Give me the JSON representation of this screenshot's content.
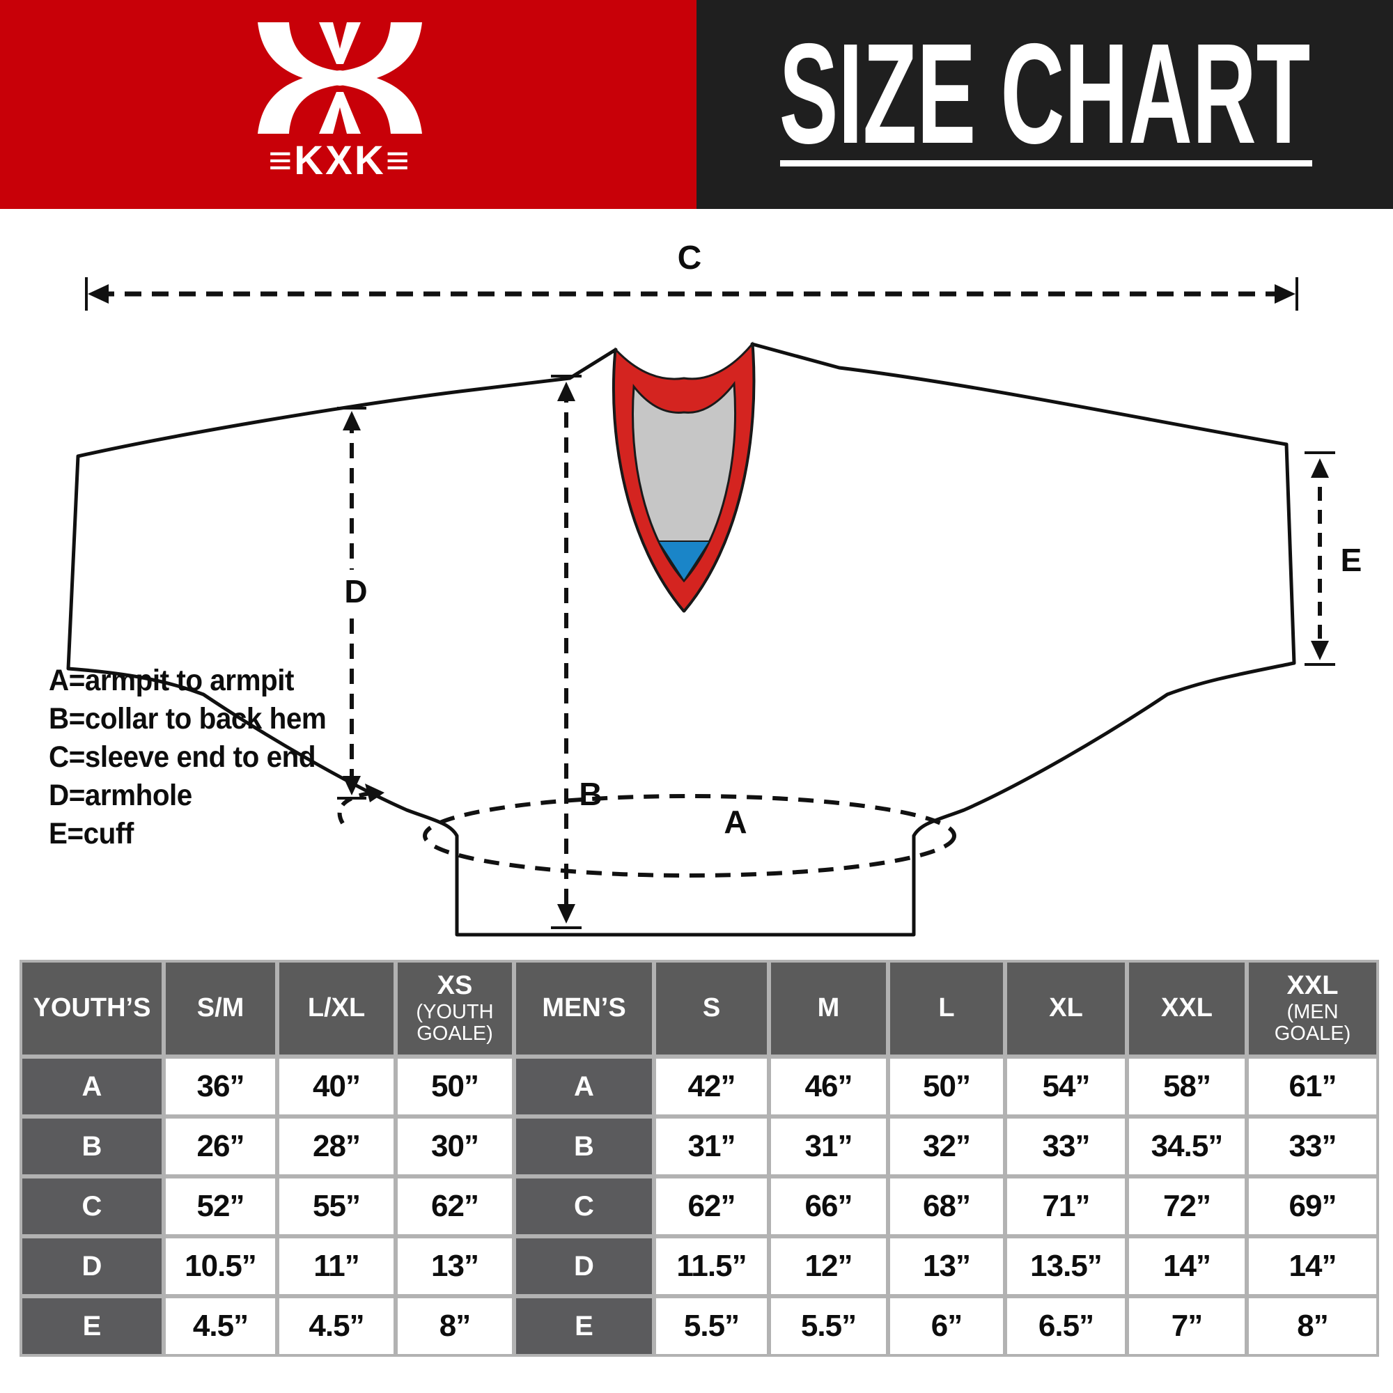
{
  "brand": {
    "logo_text": "≡KXK≡"
  },
  "banner": {
    "title": "SIZE CHART",
    "red": "#c80008",
    "dark": "#1f1f1f"
  },
  "diagram": {
    "arrow_labels": {
      "a": "A",
      "b": "B",
      "c": "C",
      "d": "D",
      "e": "E"
    },
    "legend": [
      "A=armpit to armpit",
      "B=collar to back hem",
      "C=sleeve end to end",
      "D=armhole",
      "E=cuff"
    ],
    "colors": {
      "collar_red": "#d42420",
      "collar_inner_gray": "#c6c6c6",
      "collar_inner_blue": "#1a85c8"
    }
  },
  "table": {
    "columns": [
      {
        "label": "YOUTH’S",
        "sub": ""
      },
      {
        "label": "S/M",
        "sub": ""
      },
      {
        "label": "L/XL",
        "sub": ""
      },
      {
        "label": "XS",
        "sub": "(YOUTH GOALE)"
      },
      {
        "label": "MEN’S",
        "sub": ""
      },
      {
        "label": "S",
        "sub": ""
      },
      {
        "label": "M",
        "sub": ""
      },
      {
        "label": "L",
        "sub": ""
      },
      {
        "label": "XL",
        "sub": ""
      },
      {
        "label": "XXL",
        "sub": ""
      },
      {
        "label": "XXL",
        "sub": "(MEN GOALE)"
      }
    ],
    "label_col_indexes": [
      0,
      4
    ],
    "rows": [
      {
        "cells": [
          "A",
          "36”",
          "40”",
          "50”",
          "A",
          "42”",
          "46”",
          "50”",
          "54”",
          "58”",
          "61”"
        ]
      },
      {
        "cells": [
          "B",
          "26”",
          "28”",
          "30”",
          "B",
          "31”",
          "31”",
          "32”",
          "33”",
          "34.5”",
          "33”"
        ]
      },
      {
        "cells": [
          "C",
          "52”",
          "55”",
          "62”",
          "C",
          "62”",
          "66”",
          "68”",
          "71”",
          "72”",
          "69”"
        ]
      },
      {
        "cells": [
          "D",
          "10.5”",
          "11”",
          "13”",
          "D",
          "11.5”",
          "12”",
          "13”",
          "13.5”",
          "14”",
          "14”"
        ]
      },
      {
        "cells": [
          "E",
          "4.5”",
          "4.5”",
          "8”",
          "E",
          "5.5”",
          "5.5”",
          "6”",
          "6.5”",
          "7”",
          "8”"
        ]
      }
    ]
  },
  "chart_data": {
    "type": "table",
    "title": "SIZE CHART",
    "units": "inches",
    "measurement_legend": {
      "A": "armpit to armpit",
      "B": "collar to back hem",
      "C": "sleeve end to end",
      "D": "armhole",
      "E": "cuff"
    },
    "youth_sizes": {
      "columns": [
        "S/M",
        "L/XL",
        "XS (YOUTH GOALE)"
      ],
      "A": [
        "36",
        "40",
        "50"
      ],
      "B": [
        "26",
        "28",
        "30"
      ],
      "C": [
        "52",
        "55",
        "62"
      ],
      "D": [
        "10.5",
        "11",
        "13"
      ],
      "E": [
        "4.5",
        "4.5",
        "8"
      ]
    },
    "mens_sizes": {
      "columns": [
        "S",
        "M",
        "L",
        "XL",
        "XXL",
        "XXL (MEN GOALE)"
      ],
      "A": [
        "42",
        "46",
        "50",
        "54",
        "58",
        "61"
      ],
      "B": [
        "31",
        "31",
        "32",
        "33",
        "34.5",
        "33"
      ],
      "C": [
        "62",
        "66",
        "68",
        "71",
        "72",
        "69"
      ],
      "D": [
        "11.5",
        "12",
        "13",
        "13.5",
        "14",
        "14"
      ],
      "E": [
        "5.5",
        "5.5",
        "6",
        "6.5",
        "7",
        "8"
      ]
    }
  }
}
